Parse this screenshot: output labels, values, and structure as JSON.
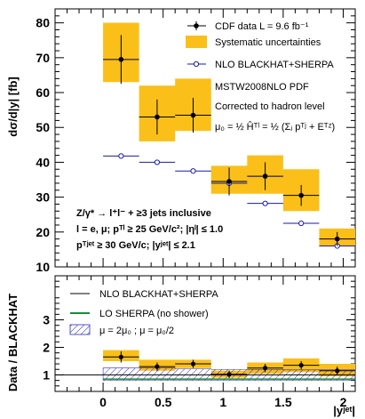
{
  "chart_data": [
    {
      "type": "line",
      "panel": "top",
      "ylabel": "dσ/d|y|   [fb]",
      "ylim": [
        10,
        84
      ],
      "xlim": [
        -0.4,
        2.1
      ],
      "y_ticks": [
        10,
        20,
        30,
        40,
        50,
        60,
        70,
        80
      ],
      "legend": {
        "cdf": "CDF data  L = 9.6 fb⁻¹",
        "syst": "Systematic uncertainties",
        "nlo": "NLO BLACKHAT+SHERPA",
        "pdf": "MSTW2008NLO PDF",
        "corr": "Corrected to hadron level",
        "scale": "μ₀ = ½ Ĥᵀˡ = ½ (Σⱼ pᵀʲ + Eᵀᶻ)"
      },
      "annotation": [
        "Z/γ* → l⁺l⁻ + ≥3 jets inclusive",
        "l = e, μ; pᵀˡ ≥ 25 GeV/c²; |ηˡ| ≤ 1.0",
        "pᵀʲᵉᵗ ≥ 30 GeV/c; |yʲᵉᵗ| ≤ 2.1"
      ],
      "x": [
        0.15,
        0.45,
        0.75,
        1.05,
        1.35,
        1.65,
        1.95
      ],
      "xerr": 0.15,
      "series": [
        {
          "name": "CDF data",
          "values": [
            69.5,
            53,
            53.5,
            34.5,
            36,
            30.5,
            18
          ],
          "yerr": [
            7,
            5,
            5,
            4,
            4,
            3,
            2
          ]
        },
        {
          "name": "NLO BLACKHAT+SHERPA",
          "values": [
            41.8,
            40,
            37.5,
            34,
            28.2,
            22.5,
            16
          ]
        }
      ],
      "band": {
        "lo": [
          63,
          46,
          49,
          31,
          31,
          26,
          16
        ],
        "hi": [
          80,
          62,
          64,
          39,
          42,
          38,
          21
        ]
      }
    },
    {
      "type": "line",
      "panel": "bottom",
      "ylabel": "Data / BLACKHAT",
      "xlabel": "|yʲᵉᵗ|",
      "xlim": [
        -0.4,
        2.1
      ],
      "x_ticks": [
        0,
        0.5,
        1,
        1.5,
        2
      ],
      "x_ticklabels": [
        "0",
        "0.5",
        "1",
        "1.5",
        "2"
      ],
      "y_ticks": [
        1,
        2,
        3
      ],
      "legend": {
        "nlo": "NLO BLACKHAT+SHERPA",
        "lo": "LO SHERPA (no shower)",
        "scale": "μ = 2μ₀ ; μ = μ₀/2"
      },
      "x": [
        0.15,
        0.45,
        0.75,
        1.05,
        1.35,
        1.65,
        1.95
      ],
      "ratio": [
        1.65,
        1.3,
        1.4,
        1.02,
        1.25,
        1.35,
        1.15
      ],
      "ratio_err": [
        0.2,
        0.15,
        0.15,
        0.14,
        0.15,
        0.15,
        0.15
      ],
      "band": {
        "lo": [
          1.5,
          1.15,
          1.25,
          0.9,
          1.05,
          1.1,
          0.95
        ],
        "hi": [
          1.9,
          1.55,
          1.55,
          1.15,
          1.45,
          1.6,
          1.4
        ]
      },
      "scale_band": {
        "lo": [
          0.8,
          0.8,
          0.8,
          0.8,
          0.8,
          0.8,
          0.8
        ],
        "hi": [
          1.25,
          1.25,
          1.22,
          1.2,
          1.2,
          1.18,
          1.18
        ]
      },
      "lo_sherpa": [
        0.85,
        0.85,
        0.85,
        0.85,
        0.85,
        0.85,
        0.85
      ]
    }
  ]
}
